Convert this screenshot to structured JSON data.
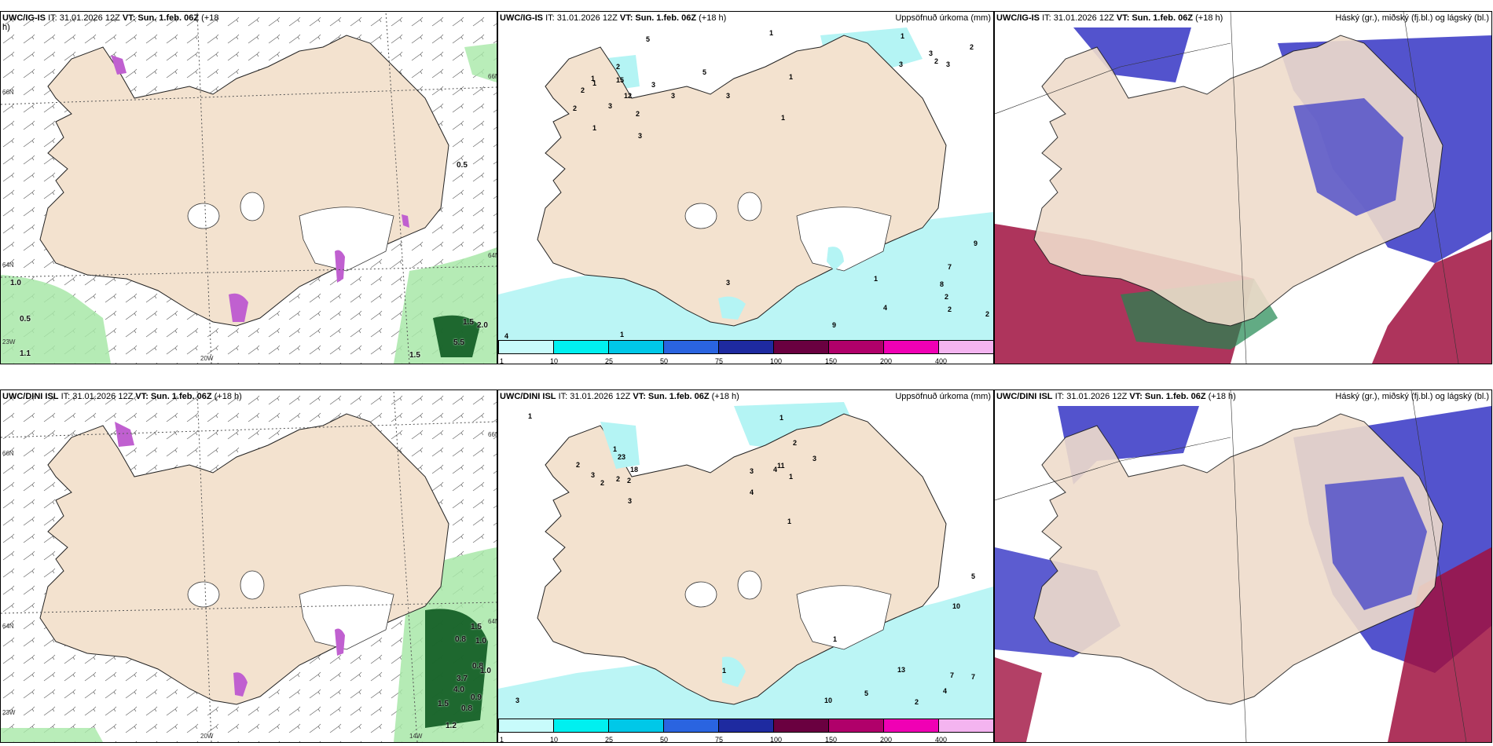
{
  "rows": [
    {
      "model": "UWC/IG-IS",
      "wind_panel": {
        "header_model": "UWC/IG-IS",
        "header_it": "IT: 31.01.2026 12Z",
        "header_vt": "VT: Sun. 1.feb. 06Z",
        "header_lead": "(+18",
        "header_lead_cont": "h)",
        "axis_labels": [
          "66N",
          "66N",
          "64N",
          "64N",
          "23W",
          "20W"
        ],
        "gust_labels": [
          "0.5",
          "1.0",
          "0.5",
          "1.1",
          "1.5",
          "2.0",
          "5.5",
          "1.5"
        ]
      },
      "precip_panel": {
        "header_model": "UWC/IG-IS",
        "header_it": "IT: 31.01.2026 12Z",
        "header_vt": "VT: Sun. 1.feb. 06Z",
        "header_lead": "(+18 h)",
        "right_title": "Uppsöfnuð úrkoma (mm)",
        "value_labels": [
          "1",
          "2",
          "2",
          "1",
          "2",
          "3",
          "1",
          "5",
          "15",
          "2",
          "12",
          "1",
          "3",
          "3",
          "3",
          "5",
          "3",
          "1",
          "1",
          "2",
          "3",
          "1",
          "3",
          "3",
          "2",
          "9",
          "7",
          "1",
          "8",
          "2",
          "2",
          "4",
          "2",
          "9",
          "1",
          "4",
          "1",
          "3"
        ]
      },
      "cloud_panel": {
        "header_model": "UWC/IG-IS",
        "header_it": "IT: 31.01.2026 12Z",
        "header_vt": "VT: Sun. 1.feb. 06Z",
        "header_lead": "(+18 h)",
        "right_title": "Háský (gr.), miðský (fj.bl.) og lágský (bl.)"
      }
    },
    {
      "model": "UWC/DINI ISL",
      "wind_panel": {
        "header_model": "UWC/DINI ISL",
        "header_it": "IT: 31.01.2026 12Z",
        "header_vt": "VT: Sun. 1.feb. 06Z",
        "header_lead": "(+18 h)",
        "axis_labels": [
          "66N",
          "66N",
          "64N",
          "64N",
          "23W",
          "20W",
          "14W"
        ],
        "gust_labels": [
          "1.5",
          "0.8",
          "1.0",
          "0.8",
          "1.0",
          "3.7",
          "4.0",
          "0.9",
          "1.5",
          "0.8",
          "1.2"
        ]
      },
      "precip_panel": {
        "header_model": "UWC/DINI ISL",
        "header_it": "IT: 31.01.2026 12Z",
        "header_vt": "VT: Sun. 1.feb. 06Z",
        "header_lead": "(+18 h)",
        "right_title": "Uppsöfnuð úrkoma (mm)",
        "value_labels": [
          "1",
          "1",
          "2",
          "1",
          "2",
          "3",
          "2",
          "23",
          "2",
          "18",
          "2",
          "3",
          "4",
          "3",
          "11",
          "3",
          "4",
          "1",
          "1",
          "5",
          "10",
          "1",
          "5",
          "13",
          "7",
          "7",
          "4",
          "10",
          "2",
          "3",
          "1"
        ]
      },
      "cloud_panel": {
        "header_model": "UWC/DINI ISL",
        "header_it": "IT: 31.01.2026 12Z",
        "header_vt": "VT: Sun. 1.feb. 06Z",
        "header_lead": "(+18 h)",
        "right_title": "Háský (gr.), miðský (fj.bl.) og lágský (bl.)"
      }
    }
  ],
  "colorbar": {
    "ticks": [
      "1",
      "10",
      "25",
      "50",
      "75",
      "100",
      "150",
      "200",
      "400"
    ],
    "colors": [
      "#c8fbfb",
      "#00f0f0",
      "#00c8e8",
      "#2a64e0",
      "#1e2aa0",
      "#6a0040",
      "#b0006a",
      "#f000b4",
      "#f4b4f0"
    ]
  },
  "colors": {
    "land": "#f3e2cf",
    "cloud_land": "#efdccb",
    "precip_light": "#b4f4f4",
    "gust_light": "#a8e8a8",
    "gust_dark": "#0d5a20",
    "snow_pink": "#c060d0",
    "low_cloud": "#4040c8",
    "mid_cloud": "#a01040",
    "high_cloud": "#208850"
  }
}
